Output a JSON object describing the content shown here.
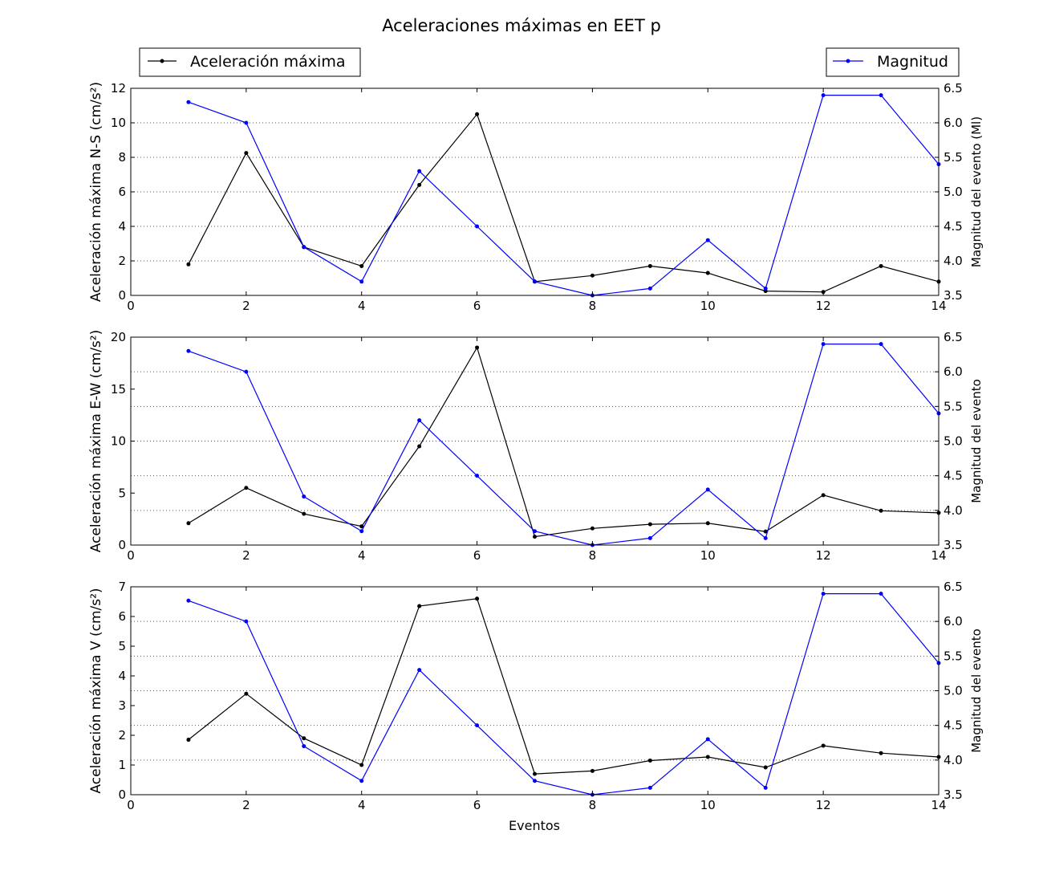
{
  "figure": {
    "title": "Aceleraciones máximas en EET p",
    "xlabel": "Eventos"
  },
  "legend": {
    "left_label": "Aceleración máxima",
    "right_label": "Magnitud"
  },
  "colors": {
    "acceleration": "#000000",
    "magnitude": "#0000ff",
    "grid": "#555555"
  },
  "chart_data": [
    {
      "type": "line",
      "panel": "N-S",
      "title": "Aceleraciones máximas en EET p",
      "xlabel": "",
      "ylabel": "Aceleración máxima N-S (cm/s²)",
      "ylabel_right": "Magnitud del evento (Ml)",
      "xlim": [
        0,
        14
      ],
      "ylim": [
        0,
        12
      ],
      "ylim_right": [
        3.5,
        6.5
      ],
      "xticks": [
        "0",
        "2",
        "4",
        "6",
        "8",
        "10",
        "12",
        "14"
      ],
      "yticks": [
        "0",
        "2",
        "4",
        "6",
        "8",
        "10",
        "12"
      ],
      "yticks_right": [
        "3.5",
        "4.0",
        "4.5",
        "5.0",
        "5.5",
        "6.0",
        "6.5"
      ],
      "grid": "horizontal dotted (right axis)",
      "x": [
        1,
        2,
        3,
        4,
        5,
        6,
        7,
        8,
        9,
        10,
        11,
        12,
        13,
        14
      ],
      "series": [
        {
          "name": "Aceleración máxima",
          "axis": "left",
          "values": [
            1.8,
            8.25,
            2.8,
            1.7,
            6.4,
            10.5,
            0.8,
            1.15,
            1.7,
            1.3,
            0.25,
            0.2,
            1.7,
            0.8
          ]
        },
        {
          "name": "Magnitud",
          "axis": "right",
          "values": [
            6.3,
            6.0,
            4.2,
            3.7,
            5.3,
            4.5,
            3.7,
            3.5,
            3.6,
            4.3,
            3.6,
            6.4,
            6.4,
            5.4
          ]
        }
      ]
    },
    {
      "type": "line",
      "panel": "E-W",
      "xlabel": "",
      "ylabel": "Aceleración máxima E-W (cm/s²)",
      "ylabel_right": "Magnitud del evento",
      "xlim": [
        0,
        14
      ],
      "ylim": [
        0,
        20
      ],
      "ylim_right": [
        3.5,
        6.5
      ],
      "xticks": [
        "0",
        "2",
        "4",
        "6",
        "8",
        "10",
        "12",
        "14"
      ],
      "yticks": [
        "0",
        "5",
        "10",
        "15",
        "20"
      ],
      "yticks_right": [
        "3.5",
        "4.0",
        "4.5",
        "5.0",
        "5.5",
        "6.0",
        "6.5"
      ],
      "grid": "horizontal dotted (right axis)",
      "x": [
        1,
        2,
        3,
        4,
        5,
        6,
        7,
        8,
        9,
        10,
        11,
        12,
        13,
        14
      ],
      "series": [
        {
          "name": "Aceleración máxima",
          "axis": "left",
          "values": [
            2.1,
            5.5,
            3.0,
            1.8,
            9.5,
            19.0,
            0.8,
            1.6,
            2.0,
            2.1,
            1.3,
            4.8,
            3.3,
            3.1
          ]
        },
        {
          "name": "Magnitud",
          "axis": "right",
          "values": [
            6.3,
            6.0,
            4.2,
            3.7,
            5.3,
            4.5,
            3.7,
            3.5,
            3.6,
            4.3,
            3.6,
            6.4,
            6.4,
            5.4
          ]
        }
      ]
    },
    {
      "type": "line",
      "panel": "V",
      "xlabel": "Eventos",
      "ylabel": "Aceleración máxima V (cm/s²)",
      "ylabel_right": "Magnitud del evento",
      "xlim": [
        0,
        14
      ],
      "ylim": [
        0,
        7
      ],
      "ylim_right": [
        3.5,
        6.5
      ],
      "xticks": [
        "0",
        "2",
        "4",
        "6",
        "8",
        "10",
        "12",
        "14"
      ],
      "yticks": [
        "0",
        "1",
        "2",
        "3",
        "4",
        "5",
        "6",
        "7"
      ],
      "yticks_right": [
        "3.5",
        "4.0",
        "4.5",
        "5.0",
        "5.5",
        "6.0",
        "6.5"
      ],
      "grid": "horizontal dotted (right axis)",
      "x": [
        1,
        2,
        3,
        4,
        5,
        6,
        7,
        8,
        9,
        10,
        11,
        12,
        13,
        14
      ],
      "series": [
        {
          "name": "Aceleración máxima",
          "axis": "left",
          "values": [
            1.85,
            3.4,
            1.9,
            1.0,
            6.35,
            6.6,
            0.7,
            0.8,
            1.15,
            1.27,
            0.92,
            1.65,
            1.4,
            1.27
          ]
        },
        {
          "name": "Magnitud",
          "axis": "right",
          "values": [
            6.3,
            6.0,
            4.2,
            3.7,
            5.3,
            4.5,
            3.7,
            3.5,
            3.6,
            4.3,
            3.6,
            6.4,
            6.4,
            5.4
          ]
        }
      ]
    }
  ]
}
